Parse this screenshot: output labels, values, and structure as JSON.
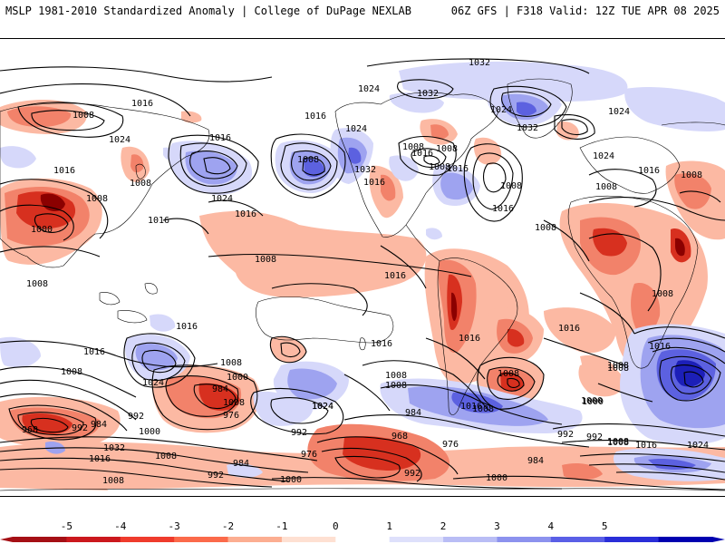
{
  "header": {
    "left_title": "MSLP 1981-2010 Standardized Anomaly | College of DuPage NEXLAB",
    "right_title": "06Z GFS | F318 Valid: 12Z TUE APR 08 2025"
  },
  "colorbar": {
    "ticks": [
      "-5",
      "-4",
      "-3",
      "-2",
      "-1",
      "0",
      "1",
      "2",
      "3",
      "4",
      "5"
    ],
    "colors": [
      "#a50f15",
      "#cb181d",
      "#ef3b2c",
      "#fb6a4a",
      "#fcae91",
      "#fee0d2",
      "#ffffff",
      "#dee0fb",
      "#b9bdf5",
      "#8c92ee",
      "#5a5fe6",
      "#2a2ed8",
      "#0000b0"
    ]
  },
  "anomaly_colors": {
    "neg_weak": "#fcb9a3",
    "neg_mid": "#f2826a",
    "neg_strong": "#d7301f",
    "neg_extreme": "#8b0000",
    "pos_weak": "#d6d8fa",
    "pos_mid": "#9ea3f0",
    "pos_strong": "#5c61e0",
    "pos_extreme": "#1c1fb8"
  },
  "isobar_labels": [
    {
      "text": "1016",
      "id": "l1"
    },
    {
      "text": "1008",
      "id": "l2"
    },
    {
      "text": "1016",
      "id": "l3"
    },
    {
      "text": "1024",
      "id": "l4"
    },
    {
      "text": "1016",
      "id": "l5"
    },
    {
      "text": "1008",
      "id": "l6"
    },
    {
      "text": "1008",
      "id": "l7"
    },
    {
      "text": "1000",
      "id": "l8"
    },
    {
      "text": "1008",
      "id": "l9"
    },
    {
      "text": "1016",
      "id": "l10"
    },
    {
      "text": "1024",
      "id": "l11"
    },
    {
      "text": "1016",
      "id": "l12"
    },
    {
      "text": "1016",
      "id": "l13"
    },
    {
      "text": "1016",
      "id": "l14"
    },
    {
      "text": "1008",
      "id": "l15"
    },
    {
      "text": "1024",
      "id": "l16"
    },
    {
      "text": "1032",
      "id": "l17"
    },
    {
      "text": "1016",
      "id": "l18"
    },
    {
      "text": "1008",
      "id": "l19"
    },
    {
      "text": "1008",
      "id": "l20"
    },
    {
      "text": "1032",
      "id": "l21"
    },
    {
      "text": "1024",
      "id": "l22"
    },
    {
      "text": "1032",
      "id": "l23"
    },
    {
      "text": "1024",
      "id": "l24"
    },
    {
      "text": "1032",
      "id": "l25"
    },
    {
      "text": "1008",
      "id": "l26"
    },
    {
      "text": "1016",
      "id": "l27"
    },
    {
      "text": "1016",
      "id": "l28"
    },
    {
      "text": "1008",
      "id": "l29"
    },
    {
      "text": "1016",
      "id": "l30"
    },
    {
      "text": "1008",
      "id": "l31"
    },
    {
      "text": "1016",
      "id": "l32"
    },
    {
      "text": "1024",
      "id": "l33"
    },
    {
      "text": "1016",
      "id": "l34"
    },
    {
      "text": "1008",
      "id": "l35"
    },
    {
      "text": "1008",
      "id": "l36"
    },
    {
      "text": "1024",
      "id": "l37"
    },
    {
      "text": "1008",
      "id": "l38"
    },
    {
      "text": "1016",
      "id": "l39"
    },
    {
      "text": "1008",
      "id": "l40"
    },
    {
      "text": "1016",
      "id": "l41"
    },
    {
      "text": "1008",
      "id": "l42"
    },
    {
      "text": "1016",
      "id": "l43"
    },
    {
      "text": "1008",
      "id": "l44"
    },
    {
      "text": "1008",
      "id": "l45"
    },
    {
      "text": "1016",
      "id": "l46"
    },
    {
      "text": "1016",
      "id": "l47"
    },
    {
      "text": "1008",
      "id": "l48"
    },
    {
      "text": "1016",
      "id": "l49"
    },
    {
      "text": "1024",
      "id": "l50"
    },
    {
      "text": "1008",
      "id": "l51"
    },
    {
      "text": "1000",
      "id": "l52"
    },
    {
      "text": "984",
      "id": "l53"
    },
    {
      "text": "976",
      "id": "l54"
    },
    {
      "text": "992",
      "id": "l55"
    },
    {
      "text": "1024",
      "id": "l56"
    },
    {
      "text": "968",
      "id": "l57"
    },
    {
      "text": "992",
      "id": "l58"
    },
    {
      "text": "984",
      "id": "l59"
    },
    {
      "text": "1000",
      "id": "l60"
    },
    {
      "text": "1032",
      "id": "l61"
    },
    {
      "text": "1016",
      "id": "l62"
    },
    {
      "text": "1008",
      "id": "l63"
    },
    {
      "text": "1008",
      "id": "l64"
    },
    {
      "text": "1016",
      "id": "l65"
    },
    {
      "text": "1008",
      "id": "l66"
    },
    {
      "text": "1008",
      "id": "l67"
    },
    {
      "text": "1024",
      "id": "l68"
    },
    {
      "text": "984",
      "id": "l69"
    },
    {
      "text": "992",
      "id": "l70"
    },
    {
      "text": "976",
      "id": "l71"
    },
    {
      "text": "968",
      "id": "l72"
    },
    {
      "text": "976",
      "id": "l73"
    },
    {
      "text": "1000",
      "id": "l74"
    },
    {
      "text": "992",
      "id": "l75"
    },
    {
      "text": "992",
      "id": "l76"
    },
    {
      "text": "984",
      "id": "l77"
    },
    {
      "text": "984",
      "id": "l78"
    },
    {
      "text": "1000",
      "id": "l79"
    },
    {
      "text": "992",
      "id": "l80"
    },
    {
      "text": "1000",
      "id": "l81"
    },
    {
      "text": "1008",
      "id": "l82"
    },
    {
      "text": "1016",
      "id": "l83"
    },
    {
      "text": "1024",
      "id": "l84"
    },
    {
      "text": "1008",
      "id": "l85"
    },
    {
      "text": "992",
      "id": "l86"
    },
    {
      "text": "1000",
      "id": "l87"
    },
    {
      "text": "1008",
      "id": "l88"
    },
    {
      "text": "1008",
      "id": "l89"
    }
  ]
}
